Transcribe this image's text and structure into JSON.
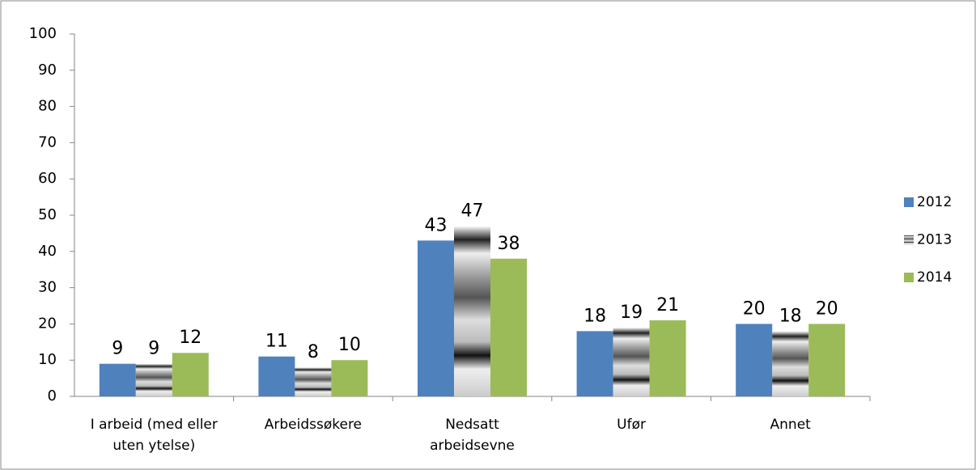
{
  "chart_data": {
    "type": "bar",
    "categories": [
      "I arbeid (med eller uten ytelse)",
      "Arbeidssøkere",
      "Nedsatt arbeidsevne",
      "Ufør",
      "Annet"
    ],
    "series": [
      {
        "name": "2012",
        "color": "#4f81bd",
        "values": [
          9,
          11,
          43,
          18,
          20
        ]
      },
      {
        "name": "2013",
        "color": "#7f7f7f",
        "fill": "gradient",
        "values": [
          9,
          8,
          47,
          19,
          18
        ]
      },
      {
        "name": "2014",
        "color": "#9bbb59",
        "values": [
          12,
          10,
          38,
          21,
          20
        ]
      }
    ],
    "ylim": [
      0,
      100
    ],
    "yticks": [
      0,
      10,
      20,
      30,
      40,
      50,
      60,
      70,
      80,
      90,
      100
    ],
    "grid": false,
    "legend": "right",
    "data_labels": true
  }
}
